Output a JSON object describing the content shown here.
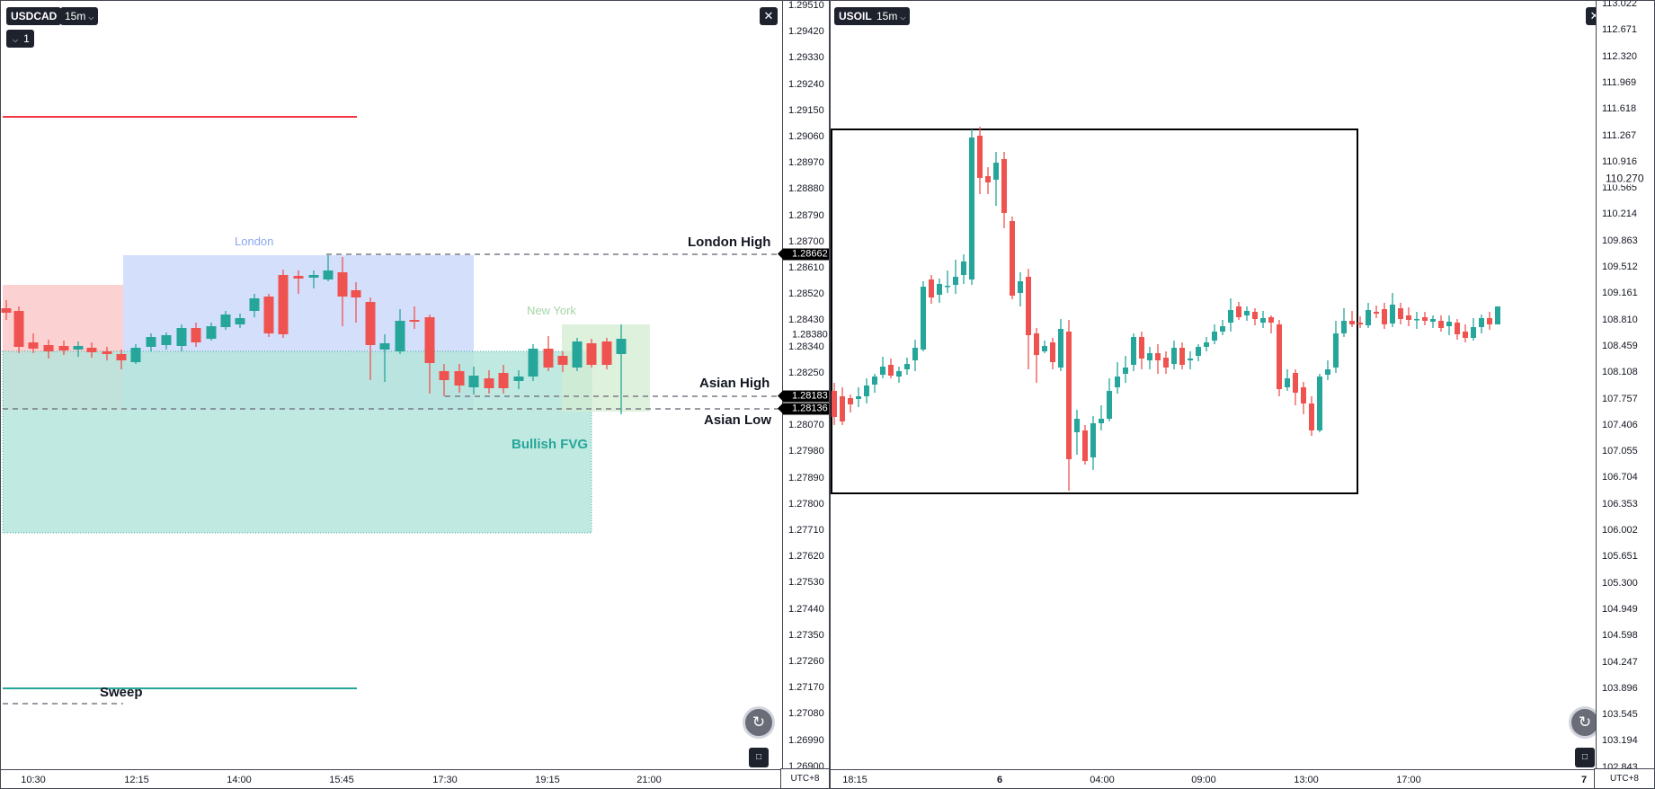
{
  "left_chart": {
    "symbol": "USDCAD",
    "interval": "15m",
    "indicator_toggle": "1",
    "timezone": "UTC+8",
    "price_ticks": [
      "1.29510",
      "1.29420",
      "1.29330",
      "1.29240",
      "1.29150",
      "1.29060",
      "1.28970",
      "1.28880",
      "1.28790",
      "1.28700",
      "1.28610",
      "1.28520",
      "1.28430",
      "1.28340",
      "1.28250",
      "1.28160",
      "1.28070",
      "1.27980",
      "1.27890",
      "1.27800",
      "1.27710",
      "1.27620",
      "1.27530",
      "1.27440",
      "1.27350",
      "1.27260",
      "1.27170",
      "1.27080",
      "1.26990",
      "1.26900"
    ],
    "time_ticks": [
      "10:30",
      "12:15",
      "14:00",
      "15:45",
      "17:30",
      "19:15",
      "21:00"
    ],
    "price_tags": {
      "london_high": "1.28662",
      "current": "1.28380",
      "asian_high": "1.28183",
      "asian_low": "1.28136"
    },
    "labels": {
      "london": "London",
      "new_york": "New York",
      "london_high": "London High",
      "asian_high": "Asian High",
      "asian_low": "Asian Low",
      "bullish_fvg": "Bullish FVG",
      "sweep": "Sweep"
    },
    "colors": {
      "bull": "#26a69a",
      "bear": "#ef5350",
      "london_zone": "#cdd9fb",
      "asian_zone": "#fbc9ca",
      "fvg": "#b6e6dc",
      "ny_zone": "#d3ecd0",
      "red_line": "#f23645"
    },
    "icons": {
      "close": "close-icon",
      "reset": "reset-icon",
      "auto_scale": "auto-scale-icon"
    }
  },
  "right_chart": {
    "symbol": "USOIL",
    "interval": "15m",
    "timezone": "UTC+8",
    "price_ticks": [
      "113.022",
      "112.671",
      "112.320",
      "111.969",
      "111.618",
      "111.267",
      "110.916",
      "110.565",
      "110.214",
      "109.863",
      "109.512",
      "109.161",
      "108.810",
      "108.459",
      "108.108",
      "107.757",
      "107.406",
      "107.055",
      "106.704",
      "106.353",
      "106.002",
      "105.651",
      "105.300",
      "104.949",
      "104.598",
      "104.247",
      "103.896",
      "103.545",
      "103.194",
      "102.843"
    ],
    "time_ticks": [
      "18:15",
      "6",
      "04:00",
      "09:00",
      "13:00",
      "17:00",
      "7"
    ],
    "price_tags": {
      "current": "110.270"
    },
    "icons": {
      "close": "close-icon",
      "reset": "reset-icon",
      "auto_scale": "auto-scale-icon"
    }
  }
}
